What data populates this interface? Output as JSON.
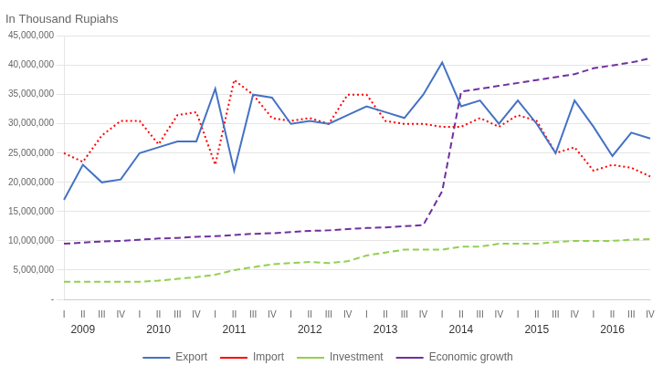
{
  "chart_data": {
    "type": "line",
    "title": "In Thousand Rupiahs",
    "categories": [
      "I",
      "II",
      "III",
      "IV",
      "I",
      "II",
      "III",
      "IV",
      "I",
      "II",
      "III",
      "IV",
      "I",
      "II",
      "III",
      "IV",
      "I",
      "II",
      "III",
      "IV",
      "I",
      "II",
      "III",
      "IV",
      "I",
      "II",
      "III",
      "IV",
      "I",
      "II",
      "III",
      "IV"
    ],
    "annotations": [
      {
        "text": "2009",
        "x": 1
      },
      {
        "text": "2010",
        "x": 5
      },
      {
        "text": "2011",
        "x": 9
      },
      {
        "text": "2012",
        "x": 13
      },
      {
        "text": "2013",
        "x": 17
      },
      {
        "text": "2014",
        "x": 21
      },
      {
        "text": "2015",
        "x": 25
      },
      {
        "text": "2016",
        "x": 29
      }
    ],
    "series": [
      {
        "name": "Export",
        "color": "#4472C4",
        "line_style": "solid",
        "values": [
          17000000,
          23000000,
          20000000,
          20500000,
          25000000,
          26000000,
          27000000,
          27000000,
          36000000,
          22000000,
          35000000,
          34500000,
          30000000,
          30500000,
          30000000,
          31500000,
          33000000,
          32000000,
          31000000,
          35000000,
          40500000,
          33000000,
          34000000,
          30000000,
          34000000,
          30000000,
          25000000,
          34000000,
          29500000,
          24500000,
          28500000,
          27500000
        ]
      },
      {
        "name": "Import",
        "color": "#FF0000",
        "line_style": "dotted",
        "values": [
          25000000,
          23500000,
          28000000,
          30500000,
          30500000,
          26500000,
          31500000,
          32000000,
          23000000,
          37500000,
          35000000,
          31000000,
          30500000,
          31000000,
          30000000,
          35000000,
          35000000,
          30500000,
          30000000,
          30000000,
          29500000,
          29500000,
          31000000,
          29500000,
          31500000,
          30500000,
          25000000,
          26000000,
          22000000,
          23000000,
          22500000,
          21000000
        ]
      },
      {
        "name": "Investment",
        "color": "#92D050",
        "line_style": "dashed",
        "values": [
          3000000,
          3000000,
          3000000,
          3000000,
          3000000,
          3200000,
          3500000,
          3800000,
          4200000,
          5000000,
          5500000,
          6000000,
          6200000,
          6400000,
          6200000,
          6500000,
          7500000,
          8000000,
          8500000,
          8500000,
          8500000,
          9000000,
          9000000,
          9500000,
          9500000,
          9500000,
          9800000,
          10000000,
          10000000,
          10000000,
          10200000,
          10300000
        ]
      },
      {
        "name": "Economic growth",
        "color": "#7030A0",
        "line_style": "dashed",
        "values": [
          9500000,
          9700000,
          9900000,
          10000000,
          10200000,
          10400000,
          10500000,
          10700000,
          10800000,
          11000000,
          11200000,
          11300000,
          11500000,
          11700000,
          11800000,
          12000000,
          12200000,
          12300000,
          12500000,
          12700000,
          18500000,
          35500000,
          36000000,
          36500000,
          37000000,
          37500000,
          38000000,
          38500000,
          39500000,
          40000000,
          40500000,
          41200000
        ]
      }
    ],
    "ylim": [
      0,
      45000000
    ],
    "yticks": [
      {
        "value": 0,
        "label": "-"
      },
      {
        "value": 5000000,
        "label": "5,000,000"
      },
      {
        "value": 10000000,
        "label": "10,000,000"
      },
      {
        "value": 15000000,
        "label": "15,000,000"
      },
      {
        "value": 20000000,
        "label": "20,000,000"
      },
      {
        "value": 25000000,
        "label": "25,000,000"
      },
      {
        "value": 30000000,
        "label": "30,000,000"
      },
      {
        "value": 35000000,
        "label": "35,000,000"
      },
      {
        "value": 40000000,
        "label": "40,000,000"
      },
      {
        "value": 45000000,
        "label": "45,000,000"
      }
    ],
    "grid": true,
    "legend": "bottom"
  }
}
